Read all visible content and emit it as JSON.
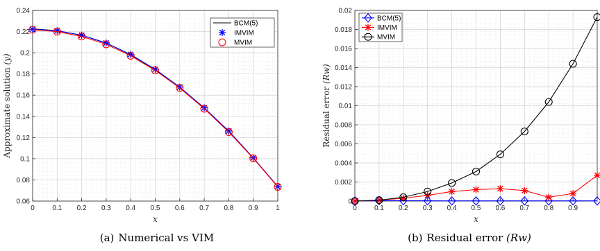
{
  "chart_data": [
    {
      "type": "line",
      "caption_prefix": "(a)",
      "caption": "Numerical vs VIM",
      "xlabel": "x",
      "ylabel_text": "Approximate solution ",
      "ylabel_var": "(y)",
      "xlim": [
        0,
        1
      ],
      "ylim": [
        0.06,
        0.24
      ],
      "xticks": [
        "0",
        "0.1",
        "0.2",
        "0.3",
        "0.4",
        "0.5",
        "0.6",
        "0.7",
        "0.8",
        "0.9",
        "1"
      ],
      "yticks": [
        "0.06",
        "0.08",
        "0.1",
        "0.12",
        "0.14",
        "0.16",
        "0.18",
        "0.2",
        "0.22",
        "0.24"
      ],
      "grid": true,
      "legend_position": "top-right",
      "x": [
        0,
        0.1,
        0.2,
        0.3,
        0.4,
        0.5,
        0.6,
        0.7,
        0.8,
        0.9,
        1.0
      ],
      "series": [
        {
          "name": "BCM(5)",
          "color": "#000000",
          "marker": "none",
          "values": [
            0.2226,
            0.2208,
            0.2166,
            0.2092,
            0.1982,
            0.184,
            0.1672,
            0.1478,
            0.1258,
            0.1008,
            0.0736
          ]
        },
        {
          "name": "IMVIM",
          "color": "#0000ff",
          "marker": "asterisk",
          "values": [
            0.2222,
            0.2208,
            0.2166,
            0.2092,
            0.1984,
            0.1844,
            0.1676,
            0.148,
            0.1262,
            0.1008,
            0.0738
          ]
        },
        {
          "name": "MVIM",
          "color": "#ff0000",
          "marker": "circle",
          "values": [
            0.2218,
            0.22,
            0.2154,
            0.208,
            0.1972,
            0.1834,
            0.1668,
            0.1472,
            0.1252,
            0.1004,
            0.0734
          ]
        }
      ]
    },
    {
      "type": "line",
      "caption_prefix": "(b)",
      "caption": "Residual error ",
      "caption_var": "(Rw)",
      "xlabel": "x",
      "ylabel_text": "Residual error ",
      "ylabel_var": "(Rw)",
      "xlim": [
        0,
        1
      ],
      "ylim": [
        0,
        0.02
      ],
      "xticks": [
        "0",
        "0.1",
        "0.2",
        "0.3",
        "0.4",
        "0.5",
        "0.6",
        "0.7",
        "0.8",
        "0.9"
      ],
      "yticks": [
        "0",
        "0.002",
        "0.004",
        "0.006",
        "0.008",
        "0.01",
        "0.012",
        "0.014",
        "0.016",
        "0.018",
        "0.02"
      ],
      "grid": true,
      "legend_position": "top-left",
      "x": [
        0,
        0.1,
        0.2,
        0.3,
        0.4,
        0.5,
        0.6,
        0.7,
        0.8,
        0.9,
        1.0
      ],
      "series": [
        {
          "name": "BCM(5)",
          "color": "#0000ff",
          "marker": "diamond",
          "values": [
            0,
            5e-05,
            4e-05,
            3e-05,
            2e-05,
            2e-05,
            2e-05,
            2e-05,
            2e-05,
            2e-05,
            2e-05
          ]
        },
        {
          "name": "IMVIM",
          "color": "#ff0000",
          "marker": "asterisk",
          "values": [
            0.0,
            0.0001,
            0.0003,
            0.0006,
            0.001,
            0.0012,
            0.0013,
            0.0011,
            0.0004,
            0.0008,
            0.0027
          ]
        },
        {
          "name": "MVIM",
          "color": "#000000",
          "marker": "circle",
          "values": [
            0.0,
            0.0001,
            0.0004,
            0.001,
            0.0019,
            0.0031,
            0.0049,
            0.0073,
            0.0104,
            0.0144,
            0.0193
          ]
        }
      ]
    }
  ]
}
